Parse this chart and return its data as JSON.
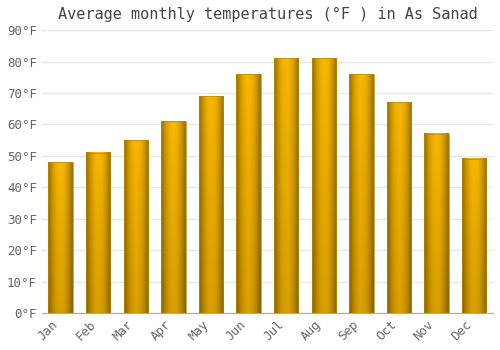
{
  "title": "Average monthly temperatures (°F ) in As Sanad",
  "months": [
    "Jan",
    "Feb",
    "Mar",
    "Apr",
    "May",
    "Jun",
    "Jul",
    "Aug",
    "Sep",
    "Oct",
    "Nov",
    "Dec"
  ],
  "values": [
    48,
    51,
    55,
    61,
    69,
    76,
    81,
    81,
    76,
    67,
    57,
    49
  ],
  "bar_color_main": "#FFC020",
  "bar_color_edge": "#CC8800",
  "ylim": [
    0,
    90
  ],
  "yticks": [
    0,
    10,
    20,
    30,
    40,
    50,
    60,
    70,
    80,
    90
  ],
  "ytick_labels": [
    "0°F",
    "10°F",
    "20°F",
    "30°F",
    "40°F",
    "50°F",
    "60°F",
    "70°F",
    "80°F",
    "90°F"
  ],
  "background_color": "#ffffff",
  "grid_color": "#e8e8e8",
  "title_fontsize": 11,
  "tick_fontsize": 9,
  "tick_color": "#666666"
}
